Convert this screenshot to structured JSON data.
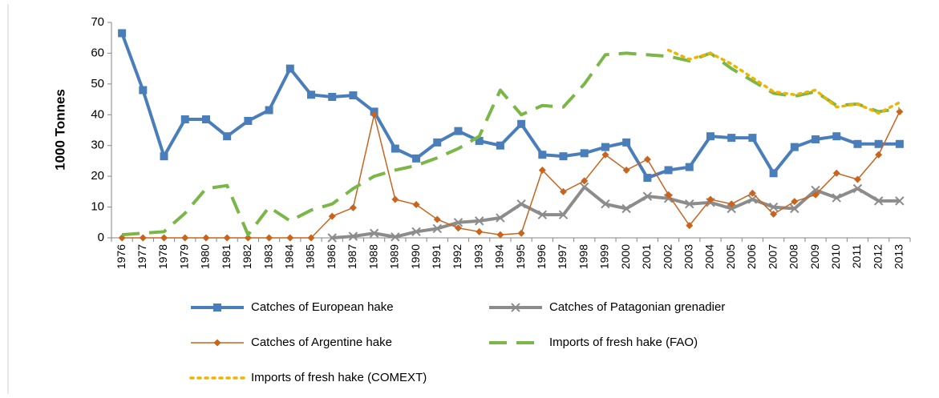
{
  "chart_data": {
    "type": "line",
    "y_label": "1000 Tonnes",
    "categories": [
      "1976",
      "1977",
      "1978",
      "1979",
      "1980",
      "1981",
      "1982",
      "1983",
      "1984",
      "1985",
      "1986",
      "1987",
      "1988",
      "1989",
      "1990",
      "1991",
      "1992",
      "1993",
      "1994",
      "1995",
      "1996",
      "1997",
      "1998",
      "1999",
      "2000",
      "2001",
      "2002",
      "2003",
      "2004",
      "2005",
      "2006",
      "2007",
      "2008",
      "2009",
      "2010",
      "2011",
      "2012",
      "2013"
    ],
    "series": [
      {
        "name": "Catches of European hake",
        "color": "#4a7ebb",
        "marker": "square",
        "line_style": "solid",
        "line_width": 4,
        "values": [
          66.5,
          48,
          26.5,
          38.5,
          38.5,
          33,
          38,
          41.5,
          55,
          46.5,
          45.8,
          46.3,
          41,
          29,
          25.8,
          31,
          34.7,
          31.5,
          30,
          37,
          27,
          26.5,
          27.5,
          29.5,
          31,
          19.5,
          22,
          23,
          33,
          32.5,
          32.5,
          21,
          29.5,
          32,
          33,
          30.5,
          30.5,
          30.5
        ]
      },
      {
        "name": "Catches of Patagonian grenadier",
        "color": "#8c8c8c",
        "marker": "x",
        "line_style": "solid",
        "line_width": 4,
        "values": [
          null,
          null,
          null,
          null,
          null,
          null,
          null,
          null,
          null,
          null,
          0,
          0.5,
          1.5,
          0.3,
          2,
          3,
          5,
          5.5,
          6.5,
          11,
          7.5,
          7.5,
          16.5,
          11,
          9.5,
          13.5,
          12.8,
          11,
          11.5,
          9.5,
          12.5,
          10,
          9.5,
          15.5,
          13,
          16,
          12,
          12
        ]
      },
      {
        "name": "Catches of Argentine hake",
        "color": "#c8641e",
        "marker": "diamond",
        "line_style": "solid",
        "line_width": 1.5,
        "values": [
          0,
          0,
          0,
          0,
          0,
          0,
          0,
          0,
          0,
          0,
          7,
          9.8,
          40,
          12.5,
          10.8,
          6,
          3.2,
          2,
          1,
          1.5,
          22,
          15,
          18.5,
          27,
          22,
          25.5,
          14,
          4,
          12.5,
          11,
          14.5,
          7.7,
          11.8,
          14,
          21,
          19,
          27,
          41
        ]
      },
      {
        "name": "Imports of fresh hake (FAO)",
        "color": "#7ab648",
        "marker": "none",
        "line_style": "dashed",
        "line_width": 4,
        "values": [
          1,
          1.5,
          2,
          8,
          16,
          17,
          1,
          10,
          5.5,
          9,
          11,
          16,
          20,
          22,
          23.5,
          26,
          29,
          33,
          48,
          40,
          43,
          42.5,
          50,
          59.5,
          60,
          59.5,
          59,
          57.5,
          60,
          55,
          51,
          47,
          46,
          47.5,
          43,
          43.5,
          41,
          42
        ]
      },
      {
        "name": "Imports of fresh hake (COMEXT)",
        "color": "#f0b400",
        "marker": "none",
        "line_style": "dotted",
        "line_width": 3.5,
        "values": [
          null,
          null,
          null,
          null,
          null,
          null,
          null,
          null,
          null,
          null,
          null,
          null,
          null,
          null,
          null,
          null,
          null,
          null,
          null,
          null,
          null,
          null,
          null,
          null,
          null,
          null,
          61,
          58,
          60,
          56.5,
          52,
          47.5,
          46.5,
          48,
          42.5,
          43.5,
          40.5,
          44
        ]
      }
    ],
    "ylim": [
      0,
      70
    ],
    "yticks": [
      0,
      10,
      20,
      30,
      40,
      50,
      60,
      70
    ],
    "grid": false
  }
}
